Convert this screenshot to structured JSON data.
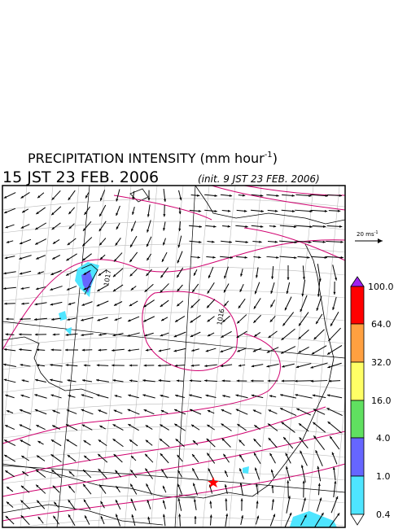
{
  "header": {
    "title": "PRECIPITATION INTENSITY (mm hour",
    "title_exponent": "-1",
    "title_close": ")",
    "valid_time": "15 JST 23 FEB. 2006",
    "init_time": "(init. 9 JST 23 FEB. 2006)"
  },
  "map": {
    "isobar_labels": [
      "1017",
      "1016"
    ]
  },
  "vector_key": {
    "label": "20 ms",
    "exponent": "-1"
  },
  "colorbar": {
    "labels": [
      "100.0",
      "64.0",
      "32.0",
      "16.0",
      "4.0",
      "1.0",
      "0.4"
    ]
  }
}
